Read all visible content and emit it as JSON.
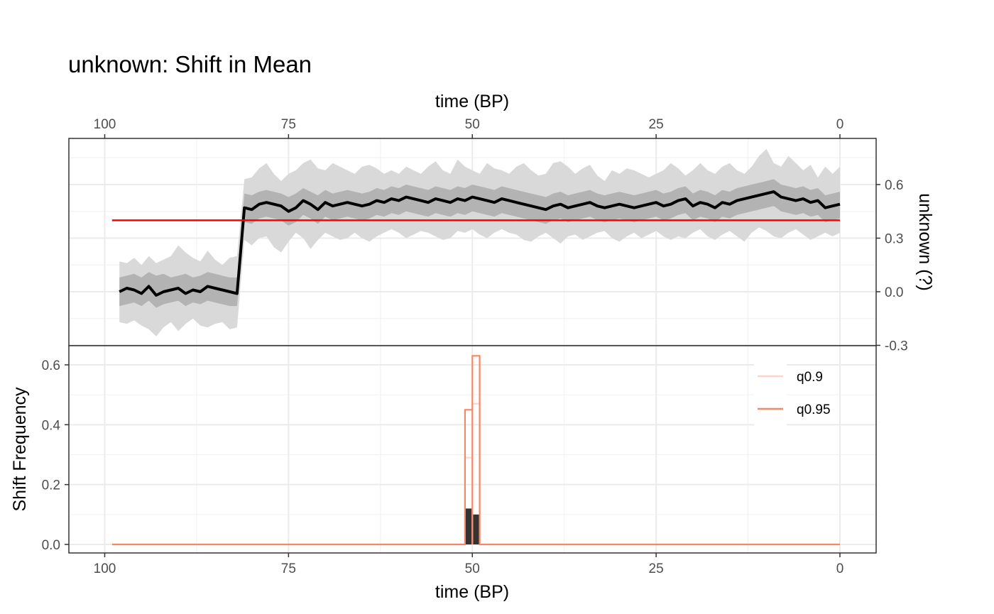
{
  "chart_data": [
    {
      "panel": "top",
      "type": "line",
      "title": "unknown: Shift in Mean",
      "xlabel": "time (BP)",
      "ylabel": "unknown (?)",
      "xlim": [
        100,
        0
      ],
      "x_reversed": true,
      "ylim": [
        -0.3,
        0.8
      ],
      "x_ticks": [
        100,
        75,
        50,
        25,
        0
      ],
      "x_tick_labels": [
        "100",
        "75",
        "50",
        "25",
        "0"
      ],
      "y_ticks": [
        -0.3,
        0.0,
        0.3,
        0.6
      ],
      "y_tick_labels": [
        "-0.3",
        "0.0",
        "0.3",
        "0.6"
      ],
      "x_axis_position": "top",
      "y_axis_position": "right",
      "grid": true,
      "colors": {
        "median": "#000000",
        "inner_band": "#b3b3b3",
        "outer_band": "#d9d9d9",
        "reference": "#ff0000"
      },
      "reference_line": {
        "y": 0.4,
        "x_range": [
          99,
          0
        ]
      },
      "series": [
        {
          "x_start": 98,
          "x_end": 0,
          "values": [
            0.0,
            0.02,
            0.01,
            -0.01,
            0.03,
            -0.02,
            0.0,
            0.01,
            0.02,
            -0.01,
            0.01,
            0.0,
            0.03,
            0.02,
            0.01,
            0.0,
            -0.01,
            0.47,
            0.46,
            0.49,
            0.5,
            0.49,
            0.48,
            0.45,
            0.47,
            0.51,
            0.49,
            0.46,
            0.5,
            0.48,
            0.49,
            0.5,
            0.49,
            0.48,
            0.49,
            0.51,
            0.5,
            0.52,
            0.51,
            0.53,
            0.52,
            0.51,
            0.5,
            0.52,
            0.51,
            0.5,
            0.52,
            0.51,
            0.53,
            0.52,
            0.51,
            0.5,
            0.52,
            0.51,
            0.5,
            0.49,
            0.48,
            0.47,
            0.46,
            0.48,
            0.49,
            0.47,
            0.48,
            0.49,
            0.5,
            0.48,
            0.47,
            0.48,
            0.49,
            0.48,
            0.47,
            0.48,
            0.49,
            0.5,
            0.48,
            0.49,
            0.51,
            0.52,
            0.48,
            0.5,
            0.49,
            0.47,
            0.5,
            0.49,
            0.51,
            0.52,
            0.53,
            0.54,
            0.55,
            0.56,
            0.53,
            0.52,
            0.51,
            0.52,
            0.5,
            0.51,
            0.47,
            0.48,
            0.49
          ]
        },
        {
          "x_start": 98,
          "x_end": 0,
          "values": [
            0.08,
            0.09,
            0.1,
            0.08,
            0.11,
            0.09,
            0.1,
            0.08,
            0.09,
            0.1,
            0.08,
            0.09,
            0.11,
            0.1,
            0.09,
            0.08,
            0.08,
            0.55,
            0.54,
            0.56,
            0.57,
            0.56,
            0.55,
            0.53,
            0.55,
            0.58,
            0.56,
            0.54,
            0.57,
            0.55,
            0.56,
            0.57,
            0.56,
            0.55,
            0.56,
            0.58,
            0.57,
            0.59,
            0.58,
            0.6,
            0.59,
            0.58,
            0.57,
            0.59,
            0.58,
            0.57,
            0.59,
            0.58,
            0.6,
            0.59,
            0.58,
            0.57,
            0.59,
            0.58,
            0.57,
            0.56,
            0.55,
            0.54,
            0.53,
            0.55,
            0.56,
            0.54,
            0.55,
            0.56,
            0.57,
            0.55,
            0.54,
            0.55,
            0.56,
            0.55,
            0.54,
            0.55,
            0.56,
            0.57,
            0.55,
            0.56,
            0.58,
            0.59,
            0.55,
            0.57,
            0.56,
            0.54,
            0.57,
            0.56,
            0.58,
            0.59,
            0.6,
            0.61,
            0.62,
            0.63,
            0.6,
            0.59,
            0.58,
            0.59,
            0.57,
            0.58,
            0.54,
            0.55,
            0.56
          ]
        },
        {
          "x_start": 98,
          "x_end": 0,
          "values": [
            -0.08,
            -0.07,
            -0.06,
            -0.08,
            -0.05,
            -0.09,
            -0.07,
            -0.06,
            -0.05,
            -0.08,
            -0.06,
            -0.07,
            -0.05,
            -0.06,
            -0.07,
            -0.08,
            -0.08,
            0.39,
            0.38,
            0.41,
            0.42,
            0.41,
            0.4,
            0.37,
            0.39,
            0.43,
            0.41,
            0.38,
            0.42,
            0.4,
            0.41,
            0.42,
            0.41,
            0.4,
            0.41,
            0.43,
            0.42,
            0.44,
            0.43,
            0.45,
            0.44,
            0.43,
            0.42,
            0.44,
            0.43,
            0.42,
            0.44,
            0.43,
            0.45,
            0.44,
            0.43,
            0.42,
            0.44,
            0.43,
            0.42,
            0.41,
            0.4,
            0.39,
            0.38,
            0.4,
            0.41,
            0.39,
            0.4,
            0.41,
            0.42,
            0.4,
            0.39,
            0.4,
            0.41,
            0.4,
            0.39,
            0.4,
            0.41,
            0.42,
            0.4,
            0.41,
            0.43,
            0.44,
            0.4,
            0.42,
            0.41,
            0.39,
            0.42,
            0.41,
            0.43,
            0.44,
            0.45,
            0.46,
            0.47,
            0.48,
            0.45,
            0.44,
            0.43,
            0.44,
            0.42,
            0.43,
            0.39,
            0.4,
            0.41
          ]
        },
        {
          "x_start": 98,
          "x_end": 0,
          "values": [
            0.17,
            0.16,
            0.19,
            0.15,
            0.2,
            0.16,
            0.18,
            0.2,
            0.26,
            0.22,
            0.19,
            0.17,
            0.23,
            0.18,
            0.15,
            0.19,
            0.2,
            0.63,
            0.64,
            0.69,
            0.72,
            0.66,
            0.62,
            0.66,
            0.68,
            0.72,
            0.74,
            0.69,
            0.68,
            0.72,
            0.7,
            0.68,
            0.66,
            0.7,
            0.71,
            0.69,
            0.66,
            0.68,
            0.66,
            0.7,
            0.68,
            0.66,
            0.7,
            0.73,
            0.68,
            0.66,
            0.74,
            0.7,
            0.68,
            0.66,
            0.72,
            0.69,
            0.68,
            0.66,
            0.7,
            0.72,
            0.68,
            0.65,
            0.66,
            0.72,
            0.73,
            0.7,
            0.66,
            0.69,
            0.71,
            0.65,
            0.62,
            0.68,
            0.66,
            0.69,
            0.68,
            0.66,
            0.64,
            0.66,
            0.68,
            0.72,
            0.69,
            0.65,
            0.68,
            0.72,
            0.68,
            0.66,
            0.7,
            0.72,
            0.68,
            0.66,
            0.7,
            0.76,
            0.8,
            0.72,
            0.7,
            0.76,
            0.72,
            0.68,
            0.71,
            0.64,
            0.7,
            0.66,
            0.7
          ]
        },
        {
          "x_start": 98,
          "x_end": 0,
          "values": [
            -0.17,
            -0.18,
            -0.16,
            -0.19,
            -0.21,
            -0.25,
            -0.2,
            -0.17,
            -0.22,
            -0.18,
            -0.15,
            -0.19,
            -0.2,
            -0.18,
            -0.17,
            -0.21,
            -0.2,
            0.29,
            0.26,
            0.3,
            0.31,
            0.25,
            0.22,
            0.28,
            0.33,
            0.3,
            0.24,
            0.29,
            0.33,
            0.31,
            0.29,
            0.3,
            0.33,
            0.3,
            0.28,
            0.31,
            0.33,
            0.35,
            0.33,
            0.3,
            0.32,
            0.34,
            0.33,
            0.31,
            0.29,
            0.3,
            0.34,
            0.33,
            0.35,
            0.32,
            0.3,
            0.33,
            0.35,
            0.33,
            0.32,
            0.29,
            0.28,
            0.31,
            0.33,
            0.3,
            0.27,
            0.31,
            0.32,
            0.29,
            0.31,
            0.33,
            0.34,
            0.3,
            0.28,
            0.31,
            0.33,
            0.3,
            0.32,
            0.34,
            0.31,
            0.29,
            0.31,
            0.3,
            0.33,
            0.35,
            0.31,
            0.29,
            0.32,
            0.34,
            0.31,
            0.28,
            0.33,
            0.36,
            0.34,
            0.31,
            0.3,
            0.33,
            0.35,
            0.32,
            0.29,
            0.31,
            0.33,
            0.31,
            0.33
          ]
        }
      ]
    },
    {
      "panel": "bottom",
      "type": "bar",
      "xlabel": "time (BP)",
      "ylabel": "Shift Frequency",
      "xlim": [
        100,
        0
      ],
      "x_reversed": true,
      "ylim": [
        -0.03,
        0.66
      ],
      "x_ticks": [
        100,
        75,
        50,
        25,
        0
      ],
      "x_tick_labels": [
        "100",
        "75",
        "50",
        "25",
        "0"
      ],
      "y_ticks": [
        0.0,
        0.2,
        0.4,
        0.6
      ],
      "y_tick_labels": [
        "0.0",
        "0.2",
        "0.4",
        "0.6"
      ],
      "grid": true,
      "legend_position": "top-right",
      "colors": {
        "bars": "#333333",
        "q0.9": "#fbd6c4",
        "q0.95": "#f4886a"
      },
      "bars": [
        {
          "x_from": 51,
          "x_to": 50,
          "value": 0.12
        },
        {
          "x_from": 50,
          "x_to": 49,
          "value": 0.1
        }
      ],
      "series": [
        {
          "name": "q0.9",
          "x_from": 99,
          "x_to": 0,
          "steps": [
            {
              "x_from": 51,
              "x_to": 50,
              "value": 0.29
            },
            {
              "x_from": 50,
              "x_to": 49,
              "value": 0.47
            }
          ]
        },
        {
          "name": "q0.95",
          "x_from": 99,
          "x_to": 0,
          "steps": [
            {
              "x_from": 51,
              "x_to": 50,
              "value": 0.45
            },
            {
              "x_from": 50,
              "x_to": 49,
              "value": 0.63
            }
          ]
        }
      ]
    }
  ]
}
